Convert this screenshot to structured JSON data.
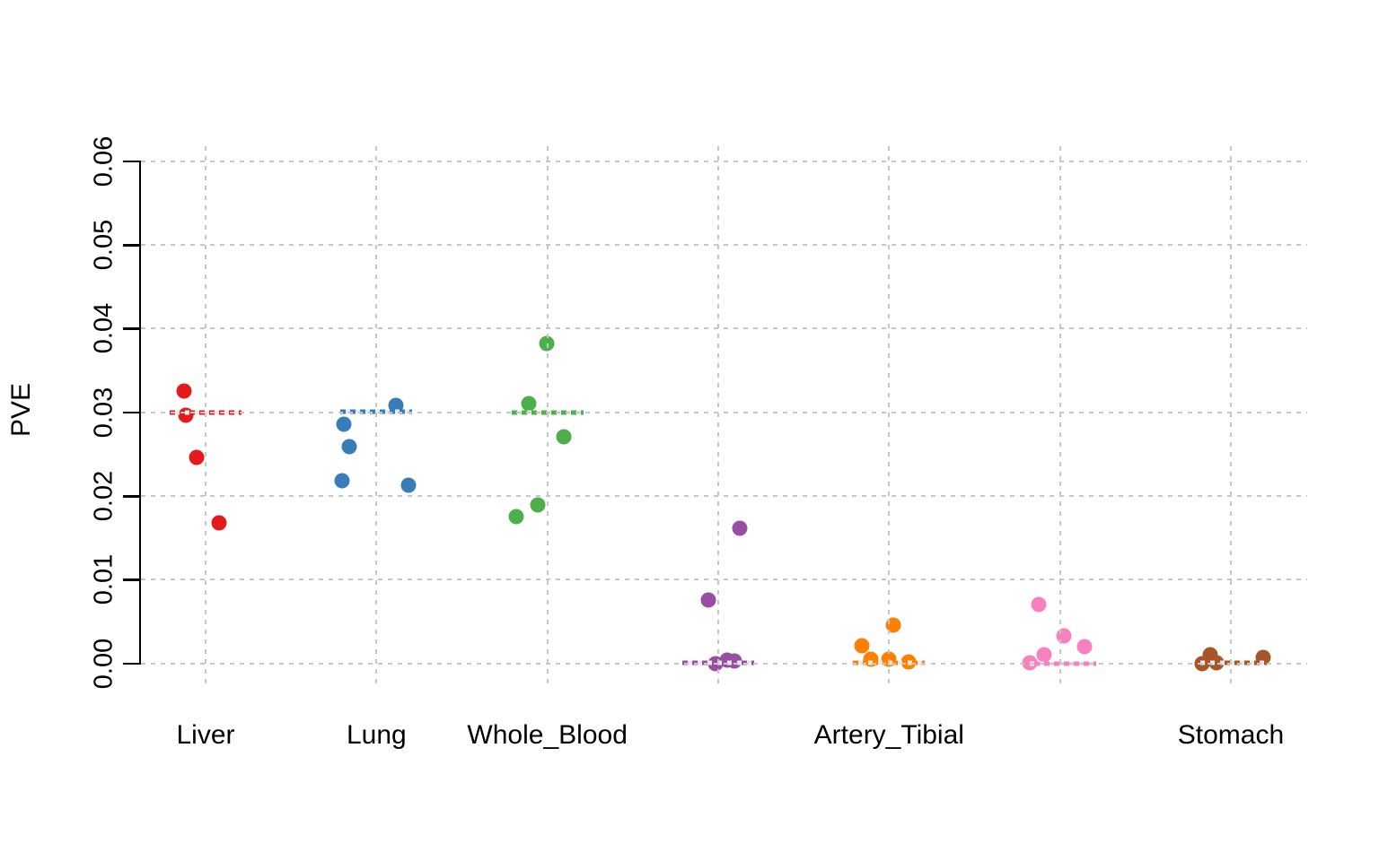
{
  "chart_data": {
    "type": "scatter",
    "subtype": "strip-plot-with-median-lines",
    "title": "",
    "xlabel": "",
    "ylabel": "PVE",
    "ylim": [
      0,
      0.06
    ],
    "ytick_labels": [
      "0.00",
      "0.01",
      "0.02",
      "0.03",
      "0.04",
      "0.05",
      "0.06"
    ],
    "grid": true,
    "grid_color": "#c7c7c7",
    "axis_color": "#000000",
    "groups": [
      {
        "label": "Liver",
        "color": "#E41A1C",
        "median": 0.03,
        "points": [
          {
            "dx": -24,
            "v": 0.0326
          },
          {
            "dx": -22,
            "v": 0.0297
          },
          {
            "dx": -10,
            "v": 0.0246
          },
          {
            "dx": 15,
            "v": 0.0168
          }
        ]
      },
      {
        "label": "Lung",
        "color": "#377EB8",
        "median": 0.0301,
        "points": [
          {
            "dx": 22,
            "v": 0.0308
          },
          {
            "dx": -36,
            "v": 0.0286
          },
          {
            "dx": -30,
            "v": 0.0259
          },
          {
            "dx": -38,
            "v": 0.0218
          },
          {
            "dx": 36,
            "v": 0.0213
          }
        ]
      },
      {
        "label": "Whole_Blood",
        "color": "#4DAF4A",
        "median": 0.03,
        "points": [
          {
            "dx": -1,
            "v": 0.0382
          },
          {
            "dx": -21,
            "v": 0.031
          },
          {
            "dx": 18,
            "v": 0.0271
          },
          {
            "dx": -11,
            "v": 0.0189
          },
          {
            "dx": -35,
            "v": 0.0176
          }
        ]
      },
      {
        "label": "",
        "color": "#984EA3",
        "median": 0.0001,
        "points": [
          {
            "dx": 24,
            "v": 0.0162
          },
          {
            "dx": -11,
            "v": 0.0076
          },
          {
            "dx": -3,
            "v": 0.0
          },
          {
            "dx": 10,
            "v": 0.0004
          },
          {
            "dx": 18,
            "v": 0.0003
          }
        ]
      },
      {
        "label": "Artery_Tibial",
        "color": "#FF7F00",
        "median": 0.0001,
        "points": [
          {
            "dx": 5,
            "v": 0.0046
          },
          {
            "dx": -30,
            "v": 0.0021
          },
          {
            "dx": -20,
            "v": 0.0005
          },
          {
            "dx": 0,
            "v": 0.0005
          },
          {
            "dx": 22,
            "v": 0.0002
          }
        ]
      },
      {
        "label": "",
        "color": "#F781BF",
        "median": 0.0,
        "points": [
          {
            "dx": -24,
            "v": 0.007
          },
          {
            "dx": 4,
            "v": 0.0033
          },
          {
            "dx": 27,
            "v": 0.002
          },
          {
            "dx": -18,
            "v": 0.0011
          },
          {
            "dx": -34,
            "v": 0.0001
          }
        ]
      },
      {
        "label": "Stomach",
        "color": "#A65628",
        "median": 0.0001,
        "points": [
          {
            "dx": -23,
            "v": 0.001
          },
          {
            "dx": -32,
            "v": 0.0
          },
          {
            "dx": -16,
            "v": 0.0001
          },
          {
            "dx": 36,
            "v": 0.0007
          }
        ]
      }
    ]
  }
}
